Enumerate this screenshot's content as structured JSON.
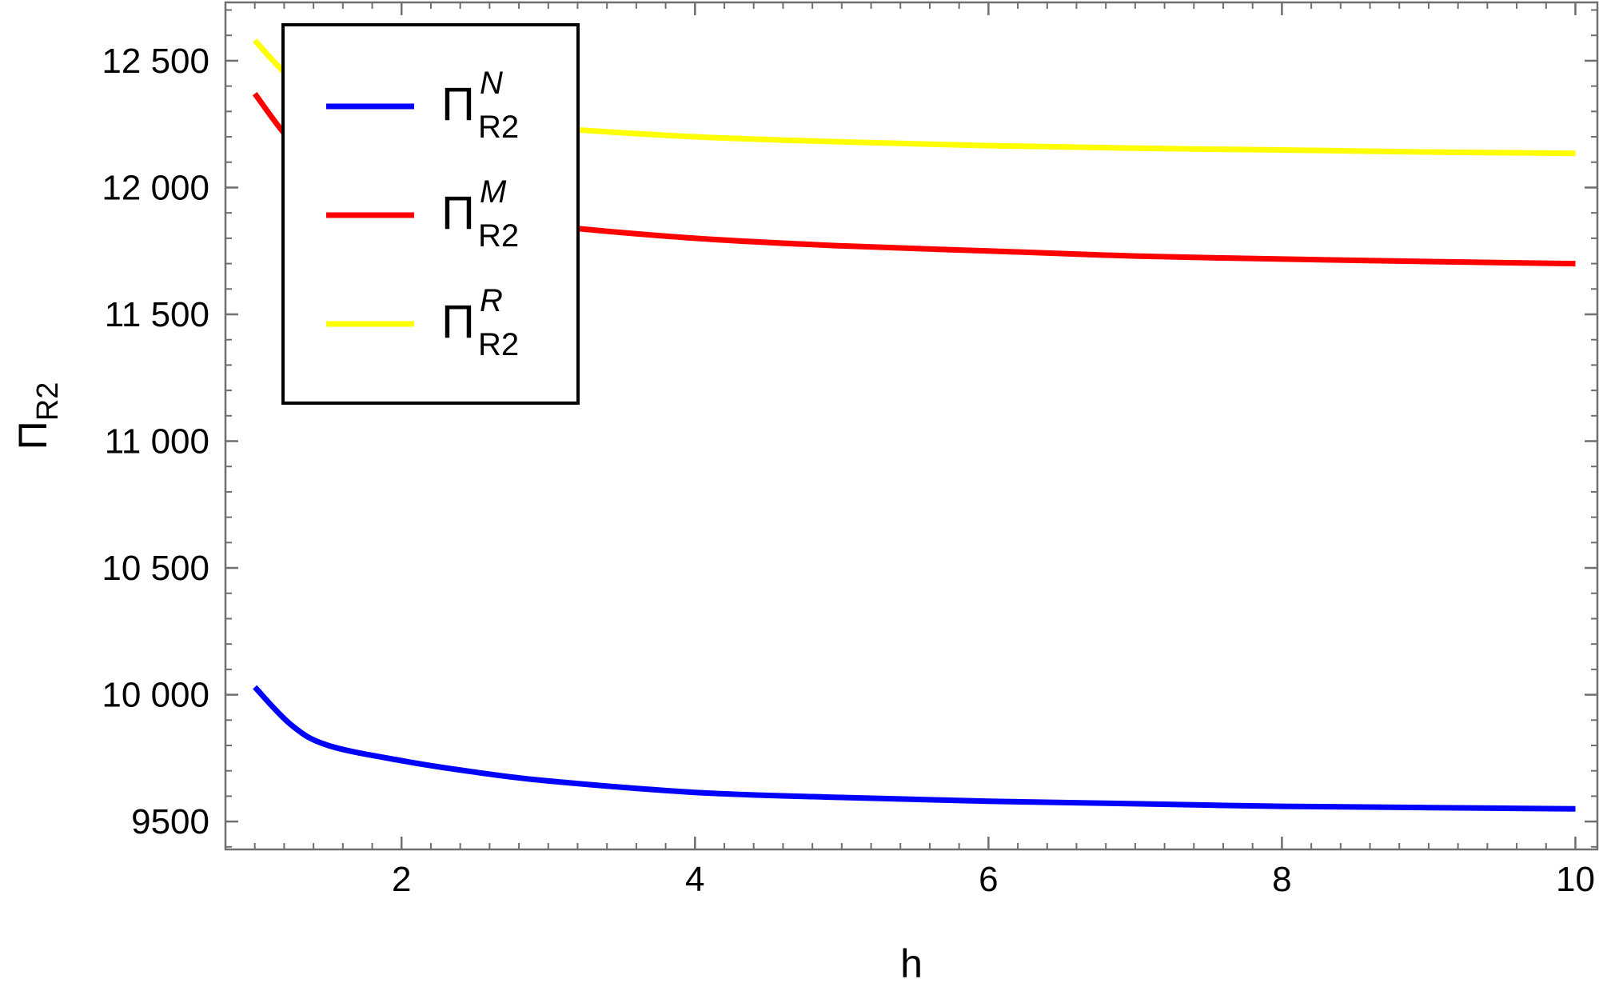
{
  "chart_data": {
    "type": "line",
    "title": "",
    "xlabel": "h",
    "ylabel_main": "Π",
    "ylabel_sub": "R2",
    "xlim": [
      0.8,
      10.15
    ],
    "ylim": [
      9390,
      12730
    ],
    "x_ticks": [
      2,
      4,
      6,
      8,
      10
    ],
    "x_tick_labels": [
      "2",
      "4",
      "6",
      "8",
      "10"
    ],
    "y_ticks": [
      9500,
      10000,
      10500,
      11000,
      11500,
      12000,
      12500
    ],
    "y_tick_labels": [
      "9500",
      "10 000",
      "10 500",
      "11 000",
      "11 500",
      "12 000",
      "12 500"
    ],
    "grid": false,
    "legend_position": "top-left",
    "x": [
      1,
      1.25,
      1.5,
      2,
      2.5,
      3,
      4,
      5,
      6,
      7,
      8,
      9,
      10
    ],
    "series": [
      {
        "name": "Π_R2^N",
        "legend_main": "Π",
        "legend_sup": "N",
        "legend_sub": "R2",
        "color": "#0000ff",
        "values": [
          10030,
          9880,
          9800,
          9740,
          9695,
          9660,
          9615,
          9595,
          9580,
          9570,
          9560,
          9555,
          9550
        ]
      },
      {
        "name": "Π_R2^M",
        "legend_main": "Π",
        "legend_sup": "M",
        "legend_sub": "R2",
        "color": "#ff0000",
        "values": [
          12370,
          12180,
          12070,
          11960,
          11890,
          11850,
          11800,
          11770,
          11750,
          11730,
          11718,
          11708,
          11700
        ]
      },
      {
        "name": "Π_R2^R",
        "legend_main": "Π",
        "legend_sup": "R",
        "legend_sub": "R2",
        "color": "#ffff00",
        "values": [
          12580,
          12430,
          12360,
          12300,
          12260,
          12235,
          12200,
          12180,
          12165,
          12155,
          12148,
          12140,
          12135
        ]
      }
    ]
  }
}
